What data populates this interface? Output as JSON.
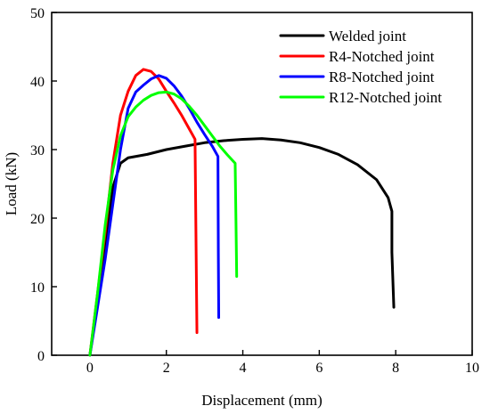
{
  "chart_data": {
    "type": "line",
    "title": "",
    "xlabel": "Displacement (mm)",
    "ylabel": "Load (kN)",
    "xlim": [
      -1,
      10
    ],
    "ylim": [
      0,
      50
    ],
    "x_ticks": [
      "0",
      "2",
      "4",
      "6",
      "8",
      "10"
    ],
    "y_ticks": [
      "0",
      "10",
      "20",
      "30",
      "40",
      "50"
    ],
    "grid": false,
    "legend_position": "top-right",
    "series": [
      {
        "name": "Welded joint",
        "color": "#000000",
        "points": [
          [
            0.0,
            0.0
          ],
          [
            0.2,
            8.0
          ],
          [
            0.4,
            16.0
          ],
          [
            0.6,
            24.5
          ],
          [
            0.8,
            28.0
          ],
          [
            1.0,
            28.8
          ],
          [
            1.5,
            29.3
          ],
          [
            2.0,
            30.0
          ],
          [
            2.5,
            30.5
          ],
          [
            3.0,
            31.0
          ],
          [
            3.5,
            31.3
          ],
          [
            4.0,
            31.5
          ],
          [
            4.5,
            31.6
          ],
          [
            5.0,
            31.4
          ],
          [
            5.5,
            31.0
          ],
          [
            6.0,
            30.3
          ],
          [
            6.5,
            29.3
          ],
          [
            7.0,
            27.8
          ],
          [
            7.5,
            25.6
          ],
          [
            7.8,
            23.0
          ],
          [
            7.9,
            21.0
          ],
          [
            7.9,
            15.0
          ],
          [
            7.95,
            7.0
          ]
        ]
      },
      {
        "name": "R4-Notched joint",
        "color": "#ff0000",
        "points": [
          [
            0.0,
            0.0
          ],
          [
            0.2,
            9.0
          ],
          [
            0.4,
            18.0
          ],
          [
            0.6,
            28.0
          ],
          [
            0.8,
            35.0
          ],
          [
            1.0,
            38.5
          ],
          [
            1.2,
            40.8
          ],
          [
            1.4,
            41.7
          ],
          [
            1.6,
            41.4
          ],
          [
            1.8,
            40.3
          ],
          [
            2.0,
            38.5
          ],
          [
            2.2,
            36.8
          ],
          [
            2.4,
            35.0
          ],
          [
            2.6,
            33.0
          ],
          [
            2.75,
            31.5
          ],
          [
            2.77,
            20.0
          ],
          [
            2.8,
            3.3
          ]
        ]
      },
      {
        "name": "R8-Notched joint",
        "color": "#0000ff",
        "points": [
          [
            0.0,
            0.0
          ],
          [
            0.2,
            7.0
          ],
          [
            0.4,
            14.0
          ],
          [
            0.6,
            22.0
          ],
          [
            0.8,
            30.0
          ],
          [
            1.0,
            36.0
          ],
          [
            1.2,
            38.4
          ],
          [
            1.4,
            39.4
          ],
          [
            1.6,
            40.3
          ],
          [
            1.8,
            40.8
          ],
          [
            2.0,
            40.4
          ],
          [
            2.2,
            39.3
          ],
          [
            2.4,
            37.8
          ],
          [
            2.6,
            36.0
          ],
          [
            2.8,
            34.0
          ],
          [
            3.0,
            32.2
          ],
          [
            3.2,
            30.5
          ],
          [
            3.35,
            29.0
          ],
          [
            3.36,
            15.0
          ],
          [
            3.37,
            5.5
          ]
        ]
      },
      {
        "name": "R12-Notched joint",
        "color": "#00ff00",
        "points": [
          [
            0.0,
            0.0
          ],
          [
            0.2,
            9.0
          ],
          [
            0.4,
            19.0
          ],
          [
            0.6,
            27.0
          ],
          [
            0.8,
            32.0
          ],
          [
            1.0,
            34.8
          ],
          [
            1.2,
            36.2
          ],
          [
            1.4,
            37.2
          ],
          [
            1.6,
            37.9
          ],
          [
            1.8,
            38.3
          ],
          [
            2.0,
            38.4
          ],
          [
            2.2,
            38.1
          ],
          [
            2.4,
            37.4
          ],
          [
            2.6,
            36.3
          ],
          [
            2.8,
            35.0
          ],
          [
            3.0,
            33.5
          ],
          [
            3.2,
            32.0
          ],
          [
            3.4,
            30.5
          ],
          [
            3.6,
            29.2
          ],
          [
            3.8,
            28.0
          ],
          [
            3.82,
            20.0
          ],
          [
            3.84,
            11.5
          ]
        ]
      }
    ]
  }
}
